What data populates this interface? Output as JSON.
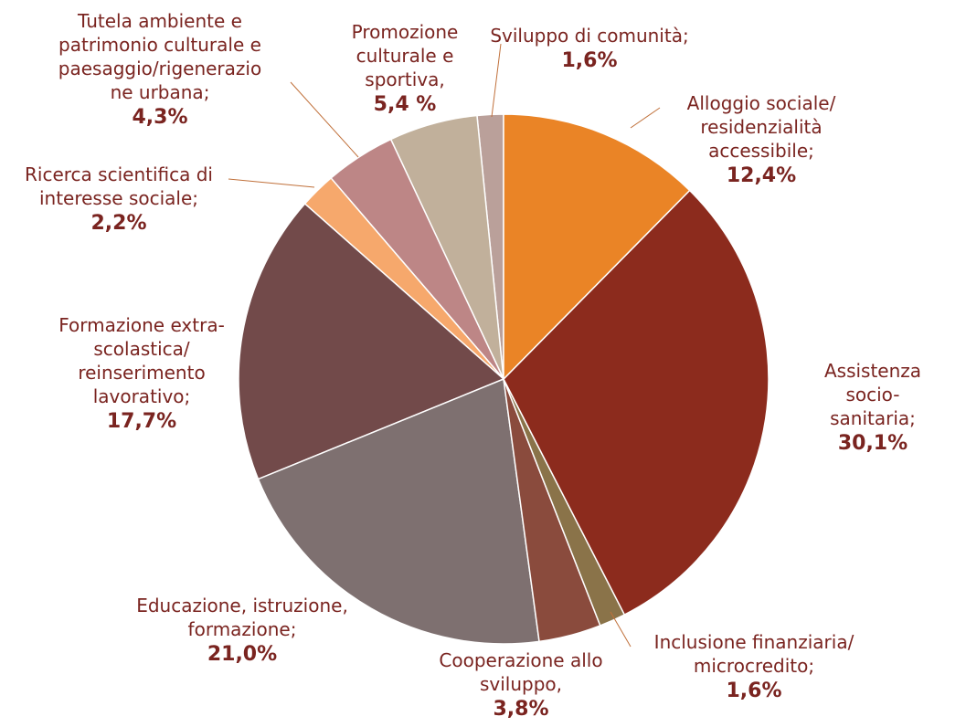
{
  "chart_data": {
    "type": "pie",
    "categories": [
      "Alloggio sociale/\nresidenzialità\naccessibile;",
      "Assistenza socio-\nsanitaria;",
      "Inclusione finanziaria/\nmicrocredito;",
      "Cooperazione allo\nsviluppo,",
      "Educazione, istruzione,\nformazione;",
      "Formazione extra-\nscolastica/\nreinserimento\nlavorativo;",
      "Ricerca scientifica di\ninteresse sociale;",
      "Tutela ambiente e\npatrimonio culturale e\npaesaggio/rigenerazio\nne urbana;",
      "Promozione\nculturale e\nsportiva,",
      "Sviluppo di comunità;"
    ],
    "values": [
      12.4,
      30.1,
      1.6,
      3.8,
      21.0,
      17.7,
      2.2,
      4.3,
      5.4,
      1.6
    ],
    "value_labels": [
      "12,4%",
      "30,1%",
      "1,6%",
      "3,8%",
      "21,0%",
      "17,7%",
      "2,2%",
      "4,3%",
      "5,4 %",
      "1,6%"
    ],
    "colors": [
      "#ea8426",
      "#8c2b1d",
      "#8a7349",
      "#8a4b3d",
      "#7e7070",
      "#724a4a",
      "#f6a86c",
      "#bd8686",
      "#c1b09b",
      "#baa09a"
    ]
  }
}
